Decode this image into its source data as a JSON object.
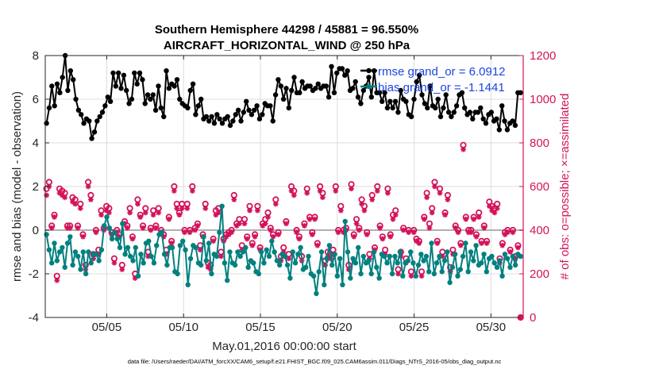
{
  "chart_data": {
    "type": "line",
    "title": "Southern Hemisphere 44298 / 45881 = 96.550%",
    "subtitle": "AIRCRAFT_HORIZONTAL_WIND @ 250 hPa",
    "xlabel": "May.01,2016 00:00:00 start",
    "ylabel_left": "rmse and bias (model - observation)",
    "ylabel_right": "# of obs: o=possible; ×=assimilated",
    "xlim": [
      1,
      32.1
    ],
    "ylim_left": [
      -4,
      8
    ],
    "ylim_right": [
      0,
      1200
    ],
    "x_ticks": [
      5,
      10,
      15,
      20,
      25,
      30
    ],
    "x_tick_labels": [
      "05/05",
      "05/10",
      "05/15",
      "05/20",
      "05/25",
      "05/30"
    ],
    "y_ticks_left": [
      -4,
      -2,
      0,
      2,
      4,
      6,
      8
    ],
    "y_ticks_right": [
      0,
      200,
      400,
      600,
      800,
      1000,
      1200
    ],
    "grid": true,
    "legend": {
      "placement": "top-right",
      "entries": [
        "rmse grand_or = 6.0912",
        "bias grand_or = -1.1441"
      ]
    },
    "colors": {
      "rmse": "#000000",
      "bias": "#00807f",
      "obs": "#d3135b",
      "zero_line": "#b0b0b0",
      "legend_text": "#1a46e0"
    },
    "series": [
      {
        "name": "rmse",
        "axis": "left",
        "values": [
          4.9,
          5.6,
          6.6,
          5.7,
          6.7,
          6.3,
          7.0,
          8.0,
          6.4,
          7.3,
          6.9,
          6.0,
          5.5,
          5.3,
          4.9,
          5.1,
          5.0,
          4.2,
          4.5,
          5.0,
          5.2,
          5.4,
          5.7,
          6.1,
          5.9,
          7.2,
          6.6,
          7.2,
          6.5,
          7.1,
          6.4,
          5.8,
          6.0,
          7.2,
          6.7,
          7.2,
          6.9,
          5.8,
          6.2,
          6.0,
          6.2,
          5.5,
          6.6,
          5.6,
          5.2,
          7.3,
          6.5,
          6.7,
          6.6,
          6.9,
          6.0,
          5.8,
          5.7,
          5.6,
          6.4,
          6.7,
          5.3,
          5.7,
          6.0,
          5.1,
          5.2,
          5.0,
          5.2,
          4.9,
          5.3,
          5.1,
          4.9,
          5.1,
          5.2,
          4.8,
          5.0,
          5.3,
          5.5,
          5.0,
          5.4,
          5.9,
          5.5,
          5.3,
          5.5,
          5.7,
          5.1,
          5.3,
          5.8,
          5.7,
          5.7,
          5.0,
          6.2,
          6.9,
          6.6,
          6.0,
          6.5,
          5.6,
          6.4,
          7.0,
          6.3,
          6.3,
          6.8,
          6.5,
          6.6,
          6.6,
          6.4,
          6.5,
          6.7,
          6.5,
          6.6,
          6.6,
          6.1,
          7.5,
          6.3,
          7.2,
          7.4,
          7.4,
          7.1,
          7.3,
          6.4,
          6.5,
          6.8,
          6.1,
          5.8,
          6.4,
          6.6,
          7.0,
          6.1,
          7.3,
          6.3,
          6.3,
          5.9,
          6.3,
          5.6,
          5.9,
          5.6,
          5.9,
          5.4,
          6.4,
          6.0,
          5.9,
          5.3,
          5.2,
          6.0,
          6.8,
          7.1,
          6.2,
          5.8,
          5.6,
          6.6,
          5.7,
          5.6,
          6.0,
          5.2,
          5.6,
          6.2,
          5.4,
          5.2,
          5.4,
          5.7,
          6.2,
          6.3,
          5.6,
          5.3,
          5.4,
          5.1,
          5.4,
          5.4,
          5.6,
          5.1,
          4.9,
          5.3,
          5.4,
          5.0,
          5.1,
          4.6,
          5.7,
          5.0,
          4.6,
          4.9,
          5.0,
          4.8,
          6.3,
          6.3
        ]
      },
      {
        "name": "bias",
        "axis": "left",
        "values": [
          -0.2,
          -0.9,
          -1.5,
          -0.6,
          -1.4,
          -1.0,
          -0.8,
          -1.7,
          -0.6,
          -0.3,
          -1.6,
          -1.0,
          -1.2,
          -1.8,
          -1.0,
          -2.0,
          -1.0,
          -1.5,
          -1.1,
          -1.1,
          -1.4,
          -0.9,
          0.2,
          0.6,
          0.1,
          -0.4,
          -0.1,
          -0.4,
          -0.8,
          0.3,
          -1.1,
          -0.8,
          -1.2,
          -1.4,
          -0.8,
          -2.1,
          -1.1,
          -1.5,
          -0.6,
          -0.5,
          -1.2,
          -1.5,
          -0.7,
          -0.2,
          -0.1,
          -1.1,
          -1.6,
          -0.8,
          -0.8,
          -1.9,
          -2.0,
          -0.7,
          -0.5,
          -0.9,
          -2.5,
          -1.3,
          -0.7,
          -0.8,
          -1.5,
          -1.6,
          -0.3,
          -1.4,
          -0.6,
          -2.0,
          -1.1,
          -1.2,
          -0.1,
          1.1,
          -1.5,
          -2.3,
          -1.0,
          -1.5,
          -1.6,
          -1.0,
          -1.2,
          -1.0,
          -0.8,
          -1.7,
          -1.4,
          -1.5,
          -1.9,
          -2.0,
          -1.0,
          -1.5,
          -0.9,
          -1.2,
          -0.5,
          -1.0,
          -1.4,
          -1.6,
          -1.1,
          -1.2,
          -1.6,
          -2.2,
          -1.0,
          -1.5,
          -1.1,
          -0.8,
          -1.8,
          -1.7,
          -1.2,
          -2.0,
          -2.1,
          -2.9,
          -1.9,
          -1.0,
          -2.5,
          -1.3,
          -0.7,
          -1.6,
          -1.1,
          -2.1,
          -1.3,
          -2.5,
          0.4,
          -1.0,
          -2.2,
          -1.3,
          -1.5,
          -0.8,
          -2.0,
          -1.2,
          -1.5,
          -1.4,
          -2.0,
          -1.0,
          -1.7,
          -2.2,
          -1.1,
          -1.2,
          -1.5,
          -1.2,
          -2.0,
          -1.2,
          -1.5,
          -1.0,
          -2.1,
          -1.5,
          -1.4,
          -1.0,
          -1.5,
          -2.1,
          -1.6,
          -1.1,
          -1.4,
          -1.2,
          -1.9,
          -0.6,
          -2.0,
          -1.5,
          -1.2,
          -1.9,
          -1.4,
          -1.0,
          -2.4,
          -1.7,
          -1.1,
          -2.1,
          -1.8,
          -1.2,
          -0.6,
          -1.9,
          -1.0,
          -1.4,
          -0.7,
          -1.6,
          -1.5,
          -1.1,
          -1.9,
          -1.3,
          -1.2,
          -1.5,
          -1.7,
          -1.4,
          -2.1,
          -1.1,
          -1.3,
          -1.7,
          -1.2,
          -1.6,
          -1.1,
          -1.2
        ]
      },
      {
        "name": "possible",
        "axis": "right",
        "values": [
          590,
          620,
          420,
          470,
          190,
          590,
          580,
          570,
          420,
          420,
          550,
          540,
          420,
          520,
          380,
          240,
          620,
          560,
          290,
          400,
          310,
          490,
          410,
          510,
          500,
          390,
          270,
          400,
          380,
          240,
          440,
          420,
          500,
          370,
          200,
          540,
          470,
          420,
          500,
          300,
          410,
          490,
          420,
          500,
          400,
          380,
          310,
          460,
          350,
          600,
          520,
          480,
          520,
          400,
          520,
          400,
          600,
          410,
          430,
          330,
          380,
          520,
          250,
          240,
          360,
          490,
          500,
          300,
          360,
          380,
          390,
          400,
          560,
          430,
          450,
          330,
          450,
          370,
          510,
          340,
          380,
          510,
          320,
          430,
          450,
          480,
          410,
          380,
          540,
          390,
          280,
          320,
          440,
          290,
          600,
          580,
          400,
          370,
          280,
          430,
          590,
          460,
          390,
          460,
          340,
          600,
          570,
          260,
          300,
          290,
          310,
          600,
          400,
          510,
          400,
          410,
          240,
          610,
          380,
          450,
          410,
          540,
          510,
          390,
          290,
          560,
          320,
          600,
          420,
          370,
          310,
          590,
          380,
          470,
          490,
          220,
          300,
          410,
          270,
          400,
          210,
          400,
          360,
          350,
          210,
          460,
          570,
          430,
          500,
          620,
          350,
          590,
          300,
          480,
          560,
          230,
          310,
          420,
          400,
          340,
          790,
          460,
          400,
          400,
          460,
          380,
          480,
          350,
          420,
          350,
          530,
          510,
          500,
          520,
          270,
          340,
          390,
          400,
          310,
          400,
          280,
          330,
          0
        ]
      },
      {
        "name": "assimilated",
        "axis": "right",
        "values": [
          560,
          600,
          410,
          460,
          170,
          570,
          560,
          550,
          410,
          410,
          530,
          520,
          410,
          500,
          370,
          220,
          600,
          540,
          270,
          390,
          290,
          470,
          400,
          490,
          480,
          380,
          250,
          390,
          370,
          220,
          430,
          410,
          480,
          360,
          180,
          520,
          460,
          410,
          480,
          280,
          400,
          470,
          410,
          480,
          390,
          370,
          290,
          450,
          340,
          580,
          500,
          470,
          500,
          390,
          500,
          390,
          580,
          400,
          420,
          310,
          370,
          500,
          230,
          220,
          350,
          470,
          480,
          280,
          350,
          370,
          380,
          390,
          540,
          420,
          430,
          310,
          430,
          360,
          490,
          330,
          370,
          490,
          310,
          420,
          430,
          460,
          400,
          370,
          520,
          380,
          260,
          300,
          430,
          270,
          580,
          560,
          390,
          360,
          260,
          420,
          570,
          450,
          380,
          450,
          330,
          580,
          550,
          240,
          280,
          270,
          290,
          580,
          390,
          490,
          390,
          400,
          220,
          590,
          370,
          430,
          400,
          520,
          490,
          380,
          270,
          540,
          310,
          580,
          410,
          360,
          290,
          570,
          370,
          450,
          470,
          200,
          280,
          400,
          250,
          390,
          190,
          390,
          350,
          340,
          190,
          450,
          550,
          410,
          480,
          600,
          340,
          570,
          280,
          470,
          540,
          210,
          290,
          410,
          390,
          330,
          770,
          450,
          390,
          390,
          450,
          370,
          460,
          340,
          410,
          340,
          510,
          490,
          480,
          500,
          250,
          330,
          380,
          390,
          300,
          390,
          270,
          320,
          0
        ]
      }
    ]
  },
  "footer": "data file: /Users/raeder/DAI/ATM_forcXX/CAM6_setup/f.e21.FHIST_BGC.f09_025.CAM6assim.011/Diags_NTrS_2016-05/obs_diag_output.nc"
}
